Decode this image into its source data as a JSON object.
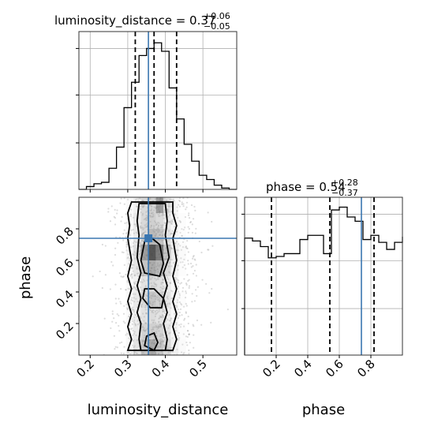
{
  "chart_data": [
    {
      "type": "histogram",
      "panel": "luminosity_distance-marginal",
      "title": {
        "main": "luminosity_distance = 0.37",
        "sup": "+0.06",
        "sub": "−0.05"
      },
      "xlim": [
        0.17,
        0.59
      ],
      "bin_edges": [
        0.17,
        0.19,
        0.21,
        0.23,
        0.25,
        0.27,
        0.29,
        0.31,
        0.33,
        0.35,
        0.37,
        0.39,
        0.41,
        0.43,
        0.45,
        0.47,
        0.49,
        0.51,
        0.53,
        0.55,
        0.57,
        0.59
      ],
      "counts": [
        0.0,
        0.02,
        0.04,
        0.05,
        0.15,
        0.3,
        0.58,
        0.76,
        0.95,
        1.0,
        1.04,
        0.98,
        0.72,
        0.5,
        0.32,
        0.2,
        0.1,
        0.07,
        0.03,
        0.01,
        0.0
      ],
      "ylim": [
        0,
        1.12
      ],
      "y_ticks": [
        0.33,
        0.67,
        1.0
      ],
      "quantiles": [
        0.32,
        0.37,
        0.43
      ],
      "truth": 0.355
    },
    {
      "type": "histogram",
      "panel": "phase-marginal",
      "title": {
        "main": "phase = 0.54",
        "sup": "+0.28",
        "sub": "−0.37"
      },
      "xlim": [
        0.0,
        1.0
      ],
      "bin_edges": [
        0.0,
        0.05,
        0.1,
        0.15,
        0.2,
        0.25,
        0.3,
        0.35,
        0.4,
        0.45,
        0.5,
        0.55,
        0.6,
        0.65,
        0.7,
        0.75,
        0.8,
        0.85,
        0.9,
        0.95,
        1.0
      ],
      "counts": [
        0.83,
        0.81,
        0.77,
        0.69,
        0.7,
        0.72,
        0.72,
        0.82,
        0.85,
        0.85,
        0.72,
        1.03,
        1.05,
        0.98,
        0.95,
        0.82,
        0.85,
        0.8,
        0.75,
        0.8,
        0.84
      ],
      "ylim": [
        0,
        1.12
      ],
      "x_ticks": [
        0.2,
        0.4,
        0.6,
        0.8
      ],
      "y_ticks": [
        0.33,
        0.67,
        1.0
      ],
      "quantiles": [
        0.17,
        0.54,
        0.82
      ],
      "truth": 0.74
    },
    {
      "type": "scatter",
      "panel": "joint-2d",
      "xlim": [
        0.17,
        0.59
      ],
      "ylim": [
        0.0,
        1.0
      ],
      "x_ticks": [
        0.2,
        0.3,
        0.4,
        0.5
      ],
      "y_ticks": [
        0.2,
        0.4,
        0.6,
        0.8
      ],
      "xlabel": "luminosity_distance",
      "ylabel": "phase",
      "truth": {
        "x": 0.355,
        "y": 0.74
      },
      "density_x_centers": [
        0.285,
        0.305,
        0.325,
        0.345,
        0.365,
        0.385,
        0.405,
        0.425,
        0.445,
        0.465
      ],
      "density_y_centers": [
        0.05,
        0.15,
        0.25,
        0.35,
        0.45,
        0.55,
        0.65,
        0.75,
        0.85,
        0.95
      ],
      "density": [
        [
          0.05,
          0.12,
          0.3,
          0.45,
          0.55,
          0.45,
          0.35,
          0.2,
          0.1,
          0.04
        ],
        [
          0.05,
          0.12,
          0.25,
          0.38,
          0.4,
          0.38,
          0.28,
          0.15,
          0.08,
          0.03
        ],
        [
          0.05,
          0.1,
          0.22,
          0.3,
          0.33,
          0.3,
          0.22,
          0.12,
          0.07,
          0.03
        ],
        [
          0.05,
          0.12,
          0.25,
          0.35,
          0.45,
          0.4,
          0.28,
          0.15,
          0.08,
          0.03
        ],
        [
          0.04,
          0.1,
          0.2,
          0.3,
          0.35,
          0.32,
          0.24,
          0.12,
          0.07,
          0.03
        ],
        [
          0.05,
          0.12,
          0.28,
          0.45,
          0.55,
          0.5,
          0.35,
          0.18,
          0.08,
          0.03
        ],
        [
          0.06,
          0.15,
          0.32,
          0.6,
          0.8,
          0.7,
          0.45,
          0.22,
          0.1,
          0.04
        ],
        [
          0.05,
          0.12,
          0.25,
          0.35,
          0.5,
          0.45,
          0.3,
          0.15,
          0.08,
          0.03
        ],
        [
          0.05,
          0.12,
          0.25,
          0.35,
          0.4,
          0.35,
          0.25,
          0.14,
          0.08,
          0.03
        ],
        [
          0.04,
          0.1,
          0.2,
          0.35,
          0.38,
          0.6,
          0.3,
          0.12,
          0.06,
          0.03
        ]
      ],
      "contours": [
        [
          [
            0.31,
            0.97
          ],
          [
            0.3,
            0.9
          ],
          [
            0.305,
            0.82
          ],
          [
            0.3,
            0.74
          ],
          [
            0.31,
            0.6
          ],
          [
            0.3,
            0.5
          ],
          [
            0.31,
            0.42
          ],
          [
            0.3,
            0.34
          ],
          [
            0.31,
            0.26
          ],
          [
            0.3,
            0.18
          ],
          [
            0.31,
            0.1
          ],
          [
            0.3,
            0.03
          ],
          [
            0.42,
            0.03
          ],
          [
            0.43,
            0.1
          ],
          [
            0.42,
            0.18
          ],
          [
            0.43,
            0.26
          ],
          [
            0.42,
            0.34
          ],
          [
            0.43,
            0.42
          ],
          [
            0.42,
            0.5
          ],
          [
            0.43,
            0.6
          ],
          [
            0.42,
            0.74
          ],
          [
            0.43,
            0.82
          ],
          [
            0.42,
            0.9
          ],
          [
            0.42,
            0.97
          ]
        ],
        [
          [
            0.33,
            0.96
          ],
          [
            0.325,
            0.85
          ],
          [
            0.33,
            0.76
          ],
          [
            0.325,
            0.62
          ],
          [
            0.335,
            0.52
          ],
          [
            0.325,
            0.44
          ],
          [
            0.335,
            0.36
          ],
          [
            0.325,
            0.27
          ],
          [
            0.335,
            0.2
          ],
          [
            0.33,
            0.1
          ],
          [
            0.335,
            0.03
          ],
          [
            0.4,
            0.03
          ],
          [
            0.405,
            0.1
          ],
          [
            0.395,
            0.2
          ],
          [
            0.405,
            0.27
          ],
          [
            0.395,
            0.36
          ],
          [
            0.405,
            0.44
          ],
          [
            0.395,
            0.52
          ],
          [
            0.41,
            0.62
          ],
          [
            0.4,
            0.76
          ],
          [
            0.405,
            0.85
          ],
          [
            0.4,
            0.96
          ]
        ],
        [
          [
            0.345,
            0.72
          ],
          [
            0.335,
            0.6
          ],
          [
            0.345,
            0.52
          ],
          [
            0.385,
            0.5
          ],
          [
            0.395,
            0.58
          ],
          [
            0.385,
            0.7
          ],
          [
            0.365,
            0.74
          ]
        ],
        [
          [
            0.345,
            0.42
          ],
          [
            0.34,
            0.36
          ],
          [
            0.36,
            0.3
          ],
          [
            0.39,
            0.3
          ],
          [
            0.395,
            0.36
          ],
          [
            0.37,
            0.42
          ]
        ],
        [
          [
            0.35,
            0.12
          ],
          [
            0.345,
            0.06
          ],
          [
            0.37,
            0.03
          ],
          [
            0.38,
            0.08
          ],
          [
            0.37,
            0.14
          ]
        ]
      ]
    }
  ]
}
